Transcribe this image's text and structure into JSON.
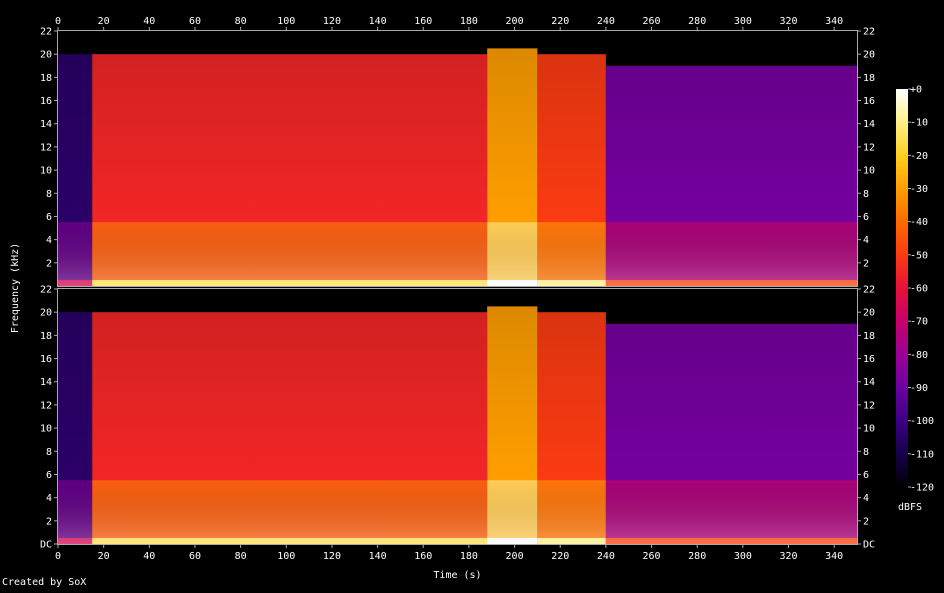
{
  "chart_data": {
    "type": "heatmap",
    "subtype": "spectrogram",
    "xlabel": "Time (s)",
    "ylabel": "Frequency (kHz)",
    "xlim": [
      0,
      350
    ],
    "ylim": [
      0,
      22
    ],
    "x_ticks": [
      0,
      20,
      40,
      60,
      80,
      100,
      120,
      140,
      160,
      180,
      200,
      220,
      240,
      260,
      280,
      300,
      320,
      340
    ],
    "y_ticks_top": [
      "22",
      "20",
      "18",
      "16",
      "14",
      "12",
      "10",
      "8",
      "6",
      "4",
      "2"
    ],
    "y_ticks_bottom": [
      "22",
      "20",
      "18",
      "16",
      "14",
      "12",
      "10",
      "8",
      "6",
      "4",
      "2",
      "DC"
    ],
    "channels": 2,
    "colorbar": {
      "label": "dBFS",
      "ticks": [
        "+0",
        "-10",
        "-20",
        "-30",
        "-40",
        "-50",
        "-60",
        "-70",
        "-80",
        "-90",
        "-100",
        "-110",
        "-120"
      ],
      "range": [
        -120,
        0
      ],
      "colors": [
        "#000000",
        "#16004a",
        "#3d0085",
        "#6b00a0",
        "#9a0096",
        "#c7006b",
        "#e8113a",
        "#fb3b12",
        "#ff6a00",
        "#ff9e00",
        "#ffcf20",
        "#fff08a",
        "#ffffff"
      ]
    },
    "segments": [
      {
        "start": 0,
        "end": 15,
        "level_db": -105,
        "cutoff_khz": 20
      },
      {
        "start": 15,
        "end": 188,
        "level_db": -55,
        "cutoff_khz": 20
      },
      {
        "start": 188,
        "end": 210,
        "level_db": -30,
        "cutoff_khz": 20.5
      },
      {
        "start": 210,
        "end": 240,
        "level_db": -50,
        "cutoff_khz": 20
      },
      {
        "start": 240,
        "end": 350,
        "level_db": -88,
        "cutoff_khz": 19
      }
    ]
  },
  "footer": {
    "credit": "Created by SoX"
  }
}
